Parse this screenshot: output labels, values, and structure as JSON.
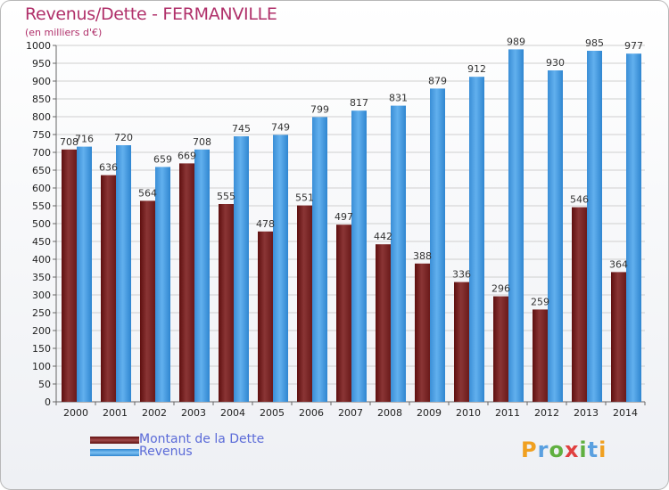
{
  "title": "Revenus/Dette - FERMANVILLE",
  "subtitle": "(en milliers d'€)",
  "logo": {
    "letters": [
      "P",
      "r",
      "o",
      "x",
      "i",
      "t",
      "i"
    ],
    "colors": [
      "#f0a020",
      "#5aa0e0",
      "#60b040",
      "#e04040",
      "#60b040",
      "#5aa0e0",
      "#f0a020"
    ]
  },
  "chart_data": {
    "type": "bar",
    "categories": [
      "2000",
      "2001",
      "2002",
      "2003",
      "2004",
      "2005",
      "2006",
      "2007",
      "2008",
      "2009",
      "2010",
      "2011",
      "2012",
      "2013",
      "2014"
    ],
    "series": [
      {
        "name": "Montant de la Dette",
        "color": "#7a2a2a",
        "values": [
          708,
          636,
          564,
          669,
          555,
          478,
          551,
          497,
          442,
          388,
          336,
          296,
          259,
          546,
          364
        ]
      },
      {
        "name": "Revenus",
        "color": "#4a9fe0",
        "values": [
          716,
          720,
          659,
          708,
          745,
          749,
          799,
          817,
          831,
          879,
          912,
          989,
          930,
          985,
          977
        ]
      }
    ],
    "data_labels": [
      [
        "708",
        "636",
        "564",
        "669",
        "555",
        "478",
        "551",
        "497",
        "442",
        "388",
        "336",
        "296",
        "259",
        "546",
        "364"
      ],
      [
        "716",
        "720",
        "659",
        "708",
        "745",
        "749",
        "799",
        "817",
        "831",
        "879",
        "912",
        "989",
        "930",
        "985",
        "977"
      ]
    ],
    "ylim": [
      0,
      1000
    ],
    "yticks": [
      0,
      50,
      100,
      150,
      200,
      250,
      300,
      350,
      400,
      450,
      500,
      550,
      600,
      650,
      700,
      750,
      800,
      850,
      900,
      950,
      1000
    ],
    "grid": true,
    "legend_position": "bottom-left"
  }
}
